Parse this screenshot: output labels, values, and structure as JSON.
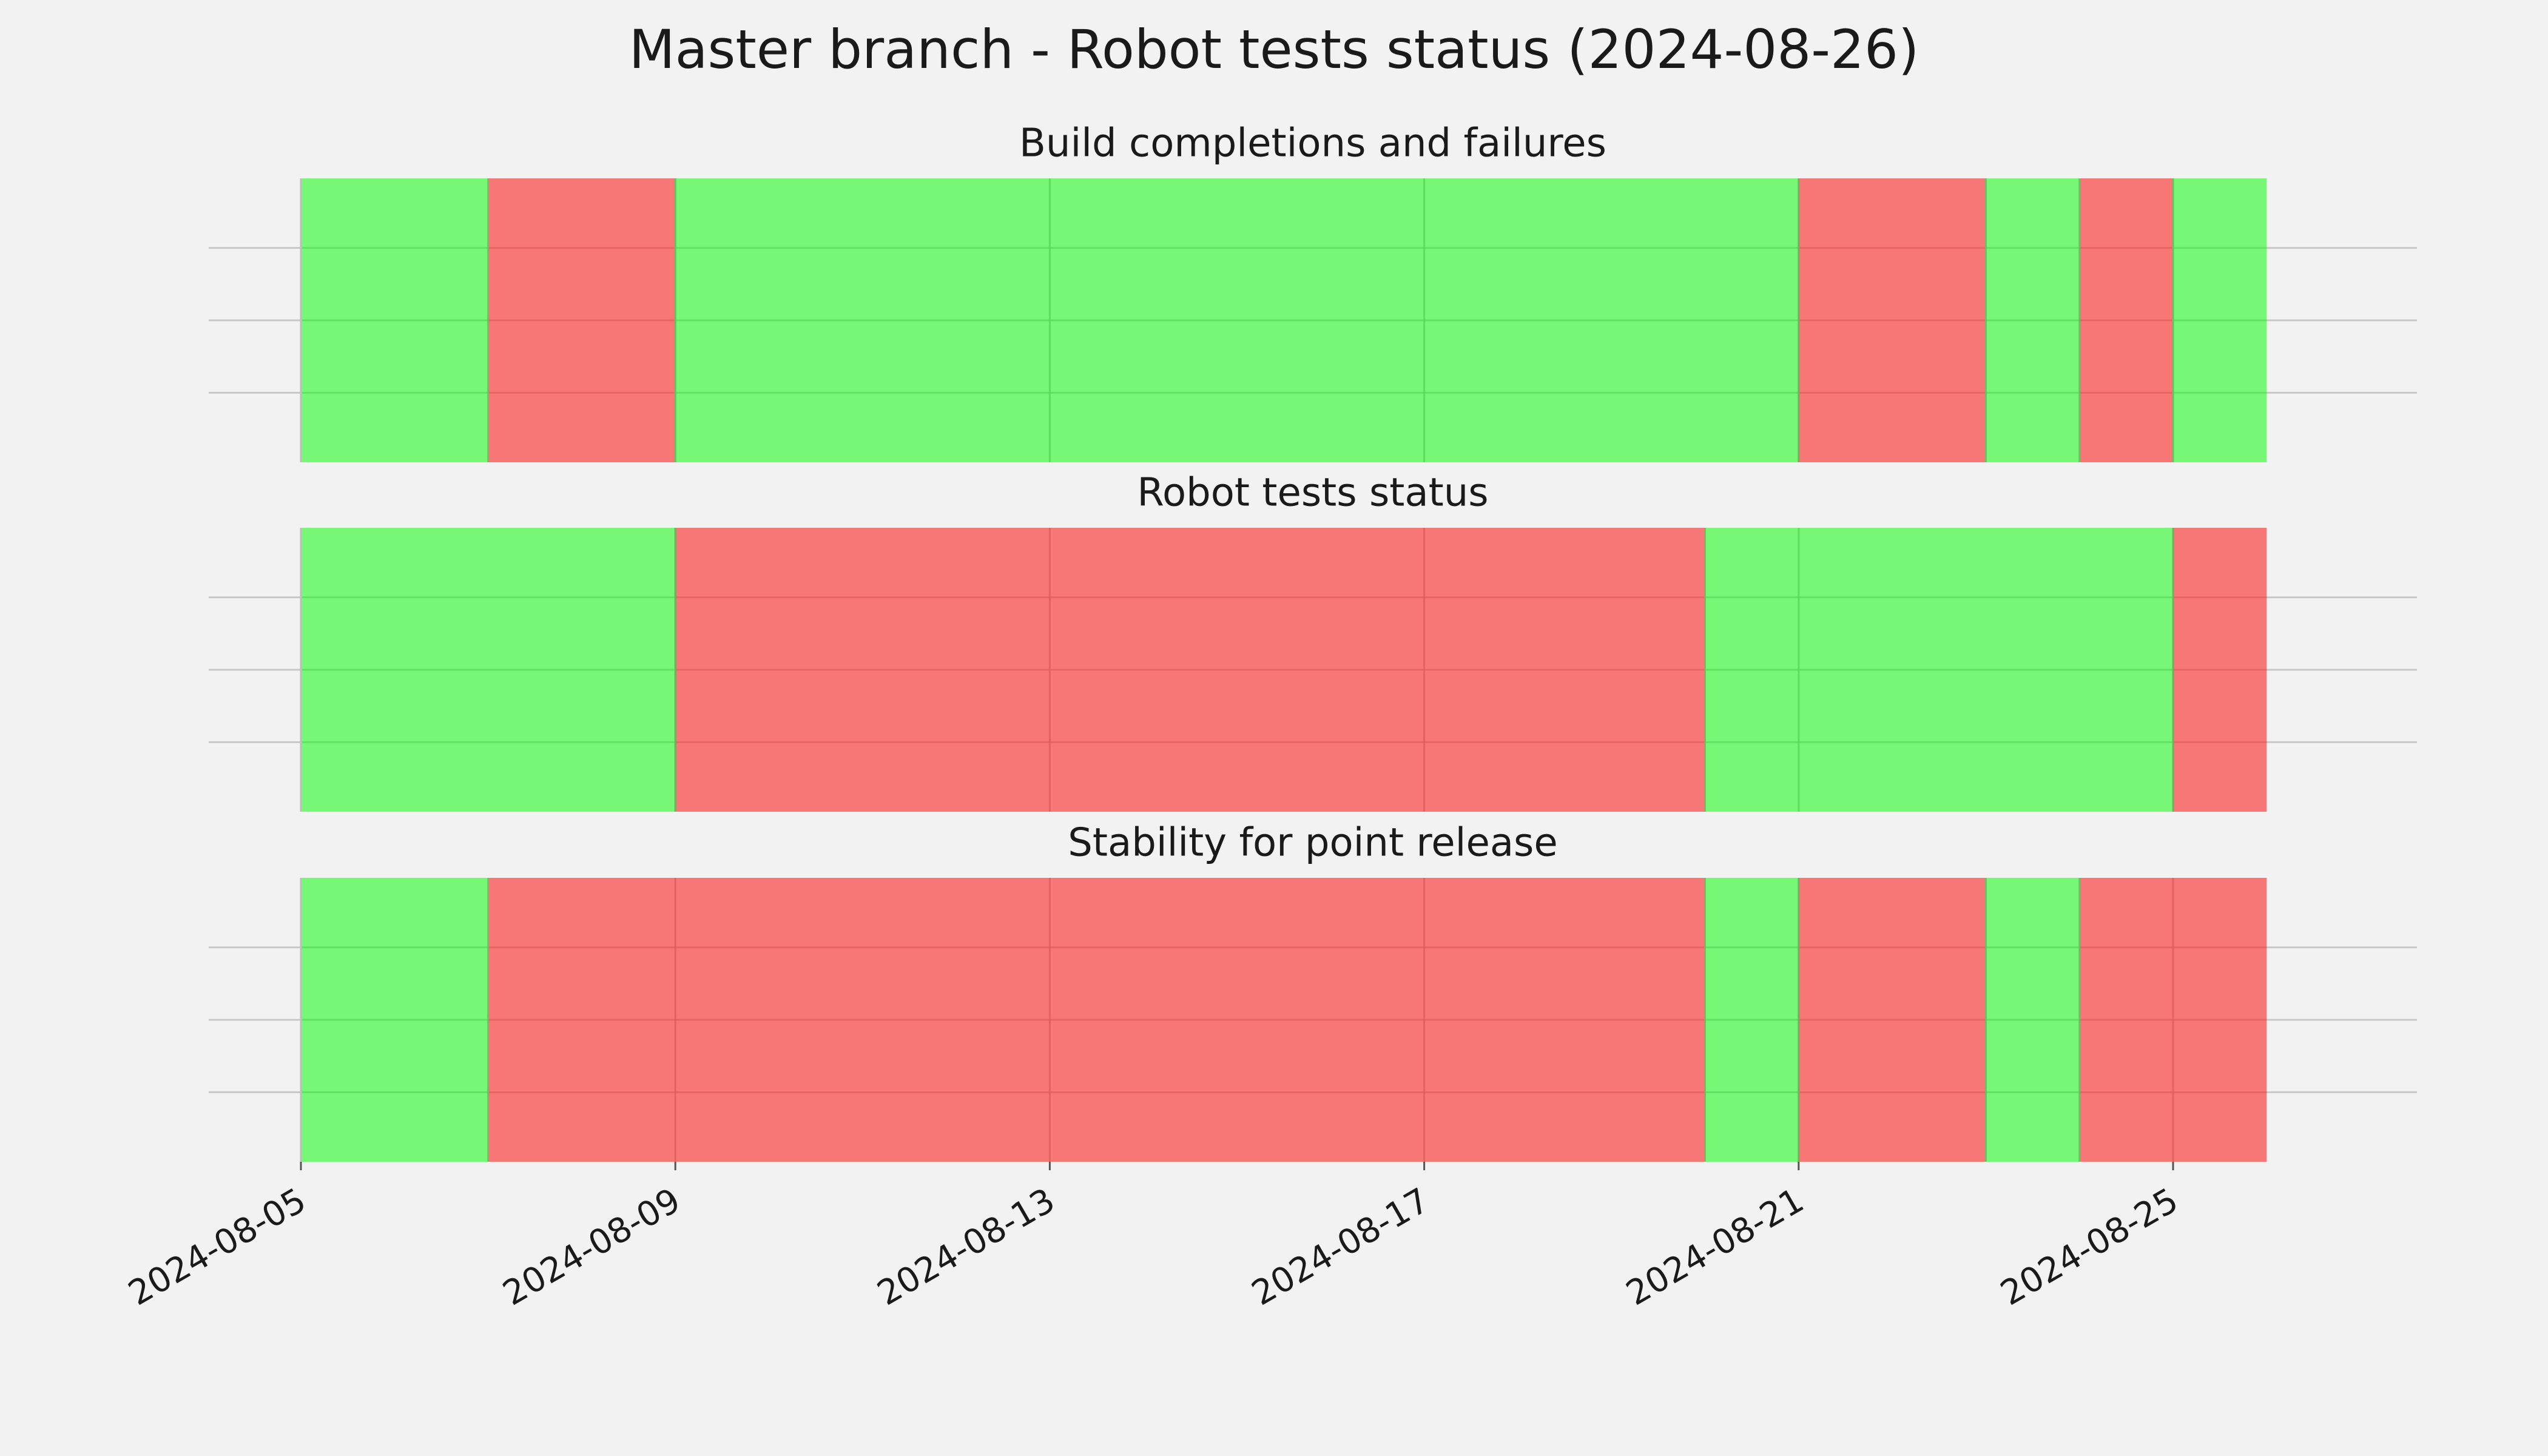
{
  "chart_data": {
    "type": "timeline",
    "title": "Master branch - Robot tests status (2024-08-26)",
    "x_range": [
      "2024-08-05",
      "2024-08-26"
    ],
    "x_axis_range": [
      "2024-08-04",
      "2024-08-28"
    ],
    "x_ticks": [
      "2024-08-05",
      "2024-08-09",
      "2024-08-13",
      "2024-08-17",
      "2024-08-21",
      "2024-08-25"
    ],
    "colors": {
      "pass": "#76f776",
      "fail": "#f77776",
      "pass_line": "#55d455",
      "fail_line": "#dd5a5a"
    },
    "grid": true,
    "panels": [
      {
        "title": "Build completions and failures",
        "segments": [
          {
            "start": "2024-08-05",
            "end": "2024-08-07",
            "status": "pass"
          },
          {
            "start": "2024-08-07",
            "end": "2024-08-09",
            "status": "fail"
          },
          {
            "start": "2024-08-09",
            "end": "2024-08-21",
            "status": "pass"
          },
          {
            "start": "2024-08-21",
            "end": "2024-08-23",
            "status": "fail"
          },
          {
            "start": "2024-08-23",
            "end": "2024-08-24",
            "status": "pass"
          },
          {
            "start": "2024-08-24",
            "end": "2024-08-25",
            "status": "fail"
          },
          {
            "start": "2024-08-25",
            "end": "2024-08-26",
            "status": "pass"
          }
        ]
      },
      {
        "title": "Robot tests status",
        "segments": [
          {
            "start": "2024-08-05",
            "end": "2024-08-09",
            "status": "pass"
          },
          {
            "start": "2024-08-09",
            "end": "2024-08-20",
            "status": "fail"
          },
          {
            "start": "2024-08-20",
            "end": "2024-08-25",
            "status": "pass"
          },
          {
            "start": "2024-08-25",
            "end": "2024-08-26",
            "status": "fail"
          }
        ]
      },
      {
        "title": "Stability for point release",
        "segments": [
          {
            "start": "2024-08-05",
            "end": "2024-08-07",
            "status": "pass"
          },
          {
            "start": "2024-08-07",
            "end": "2024-08-20",
            "status": "fail"
          },
          {
            "start": "2024-08-20",
            "end": "2024-08-21",
            "status": "pass"
          },
          {
            "start": "2024-08-21",
            "end": "2024-08-23",
            "status": "fail"
          },
          {
            "start": "2024-08-23",
            "end": "2024-08-24",
            "status": "pass"
          },
          {
            "start": "2024-08-24",
            "end": "2024-08-26",
            "status": "fail"
          }
        ]
      }
    ]
  }
}
